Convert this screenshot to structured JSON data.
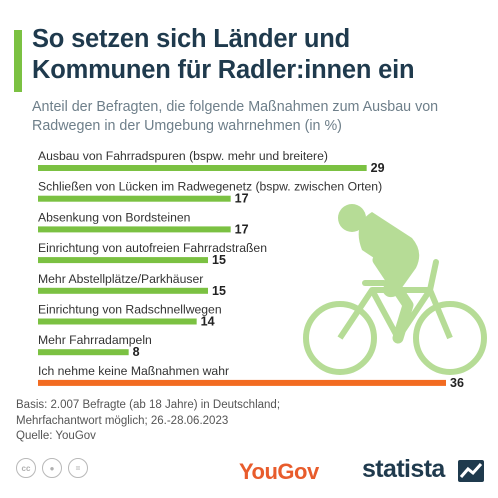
{
  "header": {
    "title": "So setzen sich Länder und Kommunen für Radler:innen ein",
    "subtitle": "Anteil der Befragten, die folgende Maßnahmen zum Ausbau von Radwegen in der Umgebung wahrnehmen (in %)"
  },
  "chart_data": {
    "type": "bar",
    "orientation": "horizontal",
    "categories": [
      "Ausbau von Fahrradspuren (bspw. mehr und breitere)",
      "Schließen von Lücken im Radwegenetz (bspw. zwischen Orten)",
      "Absenkung von Bordsteinen",
      "Einrichtung von autofreien Fahrradstraßen",
      "Mehr Abstellplätze/Parkhäuser",
      "Einrichtung von Radschnellwegen",
      "Mehr Fahrradampeln",
      "Ich nehme keine Maßnahmen wahr"
    ],
    "values": [
      29,
      17,
      17,
      15,
      15,
      14,
      8,
      36
    ],
    "colors": [
      "#7bc142",
      "#7bc142",
      "#7bc142",
      "#7bc142",
      "#7bc142",
      "#7bc142",
      "#7bc142",
      "#f26b21"
    ],
    "xlim": [
      0,
      36
    ],
    "grid": false,
    "legend": "none",
    "data_labels": true
  },
  "footer": {
    "basis_line1": "Basis: 2.007 Befragte (ab 18 Jahre) in Deutschland;",
    "basis_line2": "Mehrfachantwort möglich; 26.-28.06.2023",
    "source": "Quelle: YouGov",
    "yougov_logo": "YouGov",
    "statista_logo": "statista",
    "icons": [
      "cc-icon",
      "by-icon",
      "nd-icon"
    ]
  }
}
